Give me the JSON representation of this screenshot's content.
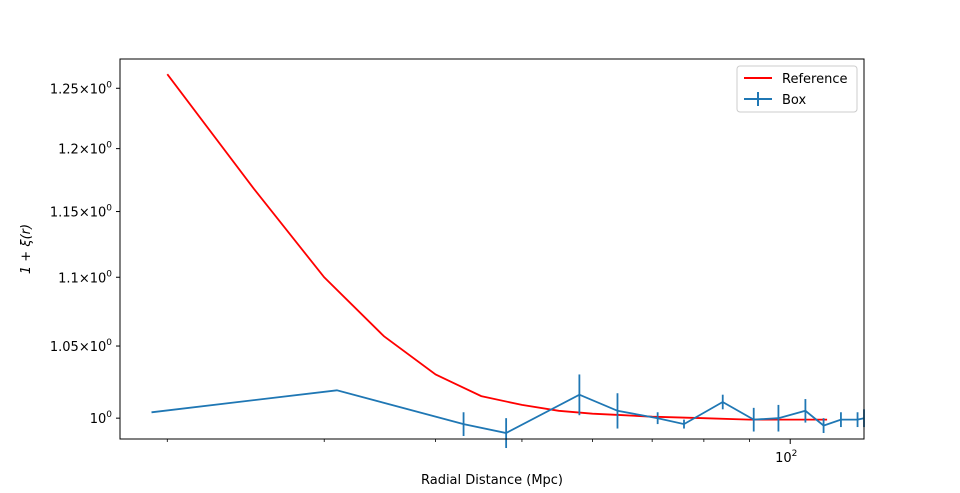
{
  "chart_data": {
    "type": "line",
    "x_scale": "log",
    "y_scale": "log",
    "xlabel": "Radial Distance (Mpc)",
    "ylabel": "1 + ξ(r)",
    "xlim": [
      17.7,
      121
    ],
    "ylim": [
      0.986,
      1.275
    ],
    "x_ticks": [
      {
        "value": 100,
        "base": "10",
        "exp": "2"
      }
    ],
    "y_ticks": [
      {
        "value": 1.0,
        "mantissa": "1",
        "base": "10",
        "exp": "0"
      },
      {
        "value": 1.05,
        "mantissa": "1.05",
        "base": "10",
        "exp": "0"
      },
      {
        "value": 1.1,
        "mantissa": "1.1",
        "base": "10",
        "exp": "0"
      },
      {
        "value": 1.15,
        "mantissa": "1.15",
        "base": "10",
        "exp": "0"
      },
      {
        "value": 1.2,
        "mantissa": "1.2",
        "base": "10",
        "exp": "0"
      },
      {
        "value": 1.25,
        "mantissa": "1.25",
        "base": "10",
        "exp": "0"
      }
    ],
    "grid": false,
    "legend_position": "top-right",
    "series": [
      {
        "name": "Reference",
        "color": "#ff0000",
        "style": "line",
        "x": [
          20,
          25,
          30,
          35,
          40,
          45,
          50,
          55,
          60,
          65,
          70,
          80,
          90,
          100,
          110
        ],
        "y": [
          1.262,
          1.168,
          1.1,
          1.057,
          1.03,
          1.015,
          1.009,
          1.005,
          1.003,
          1.002,
          1.001,
          1.0,
          0.999,
          0.999,
          0.999
        ]
      },
      {
        "name": "Box",
        "color": "#1f77b4",
        "style": "errorbar",
        "x": [
          19.2,
          31,
          43,
          48,
          58,
          64,
          71,
          76,
          84,
          91,
          97,
          104,
          109,
          114,
          119,
          121
        ],
        "y": [
          1.004,
          1.019,
          0.996,
          0.99,
          1.016,
          1.005,
          1.0,
          0.996,
          1.011,
          0.999,
          1.0,
          1.005,
          0.995,
          0.999,
          0.999,
          1.0
        ],
        "yerr": [
          0,
          0,
          0.008,
          0.01,
          0.014,
          0.012,
          0.004,
          0.003,
          0.005,
          0.008,
          0.009,
          0.008,
          0.005,
          0.005,
          0.005,
          0.006
        ]
      }
    ]
  }
}
